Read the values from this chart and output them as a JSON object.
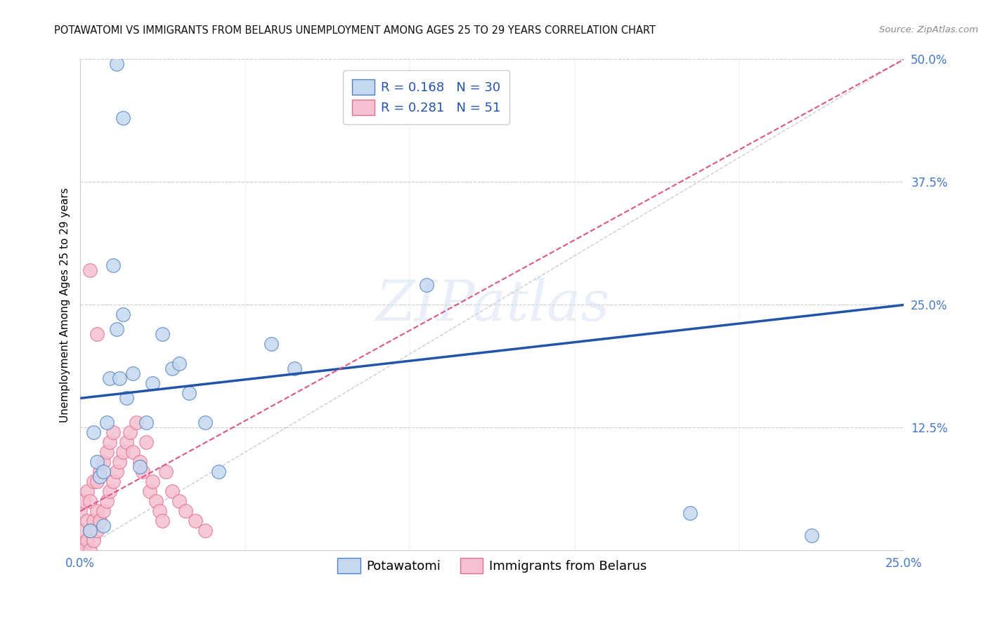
{
  "title": "POTAWATOMI VS IMMIGRANTS FROM BELARUS UNEMPLOYMENT AMONG AGES 25 TO 29 YEARS CORRELATION CHART",
  "source": "Source: ZipAtlas.com",
  "ylabel": "Unemployment Among Ages 25 to 29 years",
  "xlim": [
    0.0,
    0.25
  ],
  "ylim": [
    0.0,
    0.5
  ],
  "xticks": [
    0.0,
    0.05,
    0.1,
    0.15,
    0.2,
    0.25
  ],
  "yticks": [
    0.0,
    0.125,
    0.25,
    0.375,
    0.5
  ],
  "xticklabels": [
    "0.0%",
    "",
    "",
    "",
    "",
    "25.0%"
  ],
  "yticklabels": [
    "",
    "12.5%",
    "25.0%",
    "37.5%",
    "50.0%"
  ],
  "watermark": "ZIPatlas",
  "blue_scatter_face": "#c5d8f0",
  "blue_scatter_edge": "#5080c0",
  "pink_scatter_face": "#f5c0d0",
  "pink_scatter_edge": "#e07090",
  "blue_line_color": "#2255aa",
  "pink_line_color": "#dd5588",
  "diagonal_color": "#cccccc",
  "grid_color": "#cccccc",
  "tick_color": "#4477cc",
  "title_color": "#111111",
  "legend_text_color": "#2255aa",
  "source_color": "#888888",
  "pot_x": [
    0.003,
    0.004,
    0.005,
    0.006,
    0.007,
    0.007,
    0.008,
    0.009,
    0.01,
    0.011,
    0.012,
    0.013,
    0.014,
    0.016,
    0.018,
    0.02,
    0.022,
    0.025,
    0.028,
    0.03,
    0.033,
    0.038,
    0.042,
    0.058,
    0.065,
    0.013,
    0.011,
    0.105,
    0.185,
    0.222
  ],
  "pot_y": [
    0.02,
    0.12,
    0.09,
    0.075,
    0.025,
    0.08,
    0.13,
    0.175,
    0.29,
    0.225,
    0.175,
    0.24,
    0.155,
    0.18,
    0.085,
    0.13,
    0.17,
    0.22,
    0.185,
    0.19,
    0.16,
    0.13,
    0.08,
    0.21,
    0.185,
    0.44,
    0.495,
    0.27,
    0.038,
    0.015
  ],
  "bel_x": [
    0.0,
    0.0,
    0.0,
    0.001,
    0.001,
    0.001,
    0.002,
    0.002,
    0.002,
    0.003,
    0.003,
    0.003,
    0.004,
    0.004,
    0.004,
    0.005,
    0.005,
    0.005,
    0.006,
    0.006,
    0.007,
    0.007,
    0.008,
    0.008,
    0.009,
    0.009,
    0.01,
    0.01,
    0.011,
    0.012,
    0.013,
    0.014,
    0.015,
    0.016,
    0.017,
    0.018,
    0.019,
    0.02,
    0.021,
    0.022,
    0.023,
    0.024,
    0.025,
    0.026,
    0.028,
    0.03,
    0.032,
    0.035,
    0.038,
    0.005,
    0.003
  ],
  "bel_y": [
    0.0,
    0.01,
    0.04,
    0.0,
    0.02,
    0.05,
    0.01,
    0.03,
    0.06,
    0.0,
    0.02,
    0.05,
    0.01,
    0.03,
    0.07,
    0.02,
    0.04,
    0.07,
    0.03,
    0.08,
    0.04,
    0.09,
    0.05,
    0.1,
    0.06,
    0.11,
    0.07,
    0.12,
    0.08,
    0.09,
    0.1,
    0.11,
    0.12,
    0.1,
    0.13,
    0.09,
    0.08,
    0.11,
    0.06,
    0.07,
    0.05,
    0.04,
    0.03,
    0.08,
    0.06,
    0.05,
    0.04,
    0.03,
    0.02,
    0.22,
    0.285
  ],
  "blue_line_x0": 0.0,
  "blue_line_y0": 0.155,
  "blue_line_x1": 0.25,
  "blue_line_y1": 0.25,
  "pink_line_x0": 0.0,
  "pink_line_y0": 0.04,
  "pink_line_x1": 0.25,
  "pink_line_y1": 0.5
}
